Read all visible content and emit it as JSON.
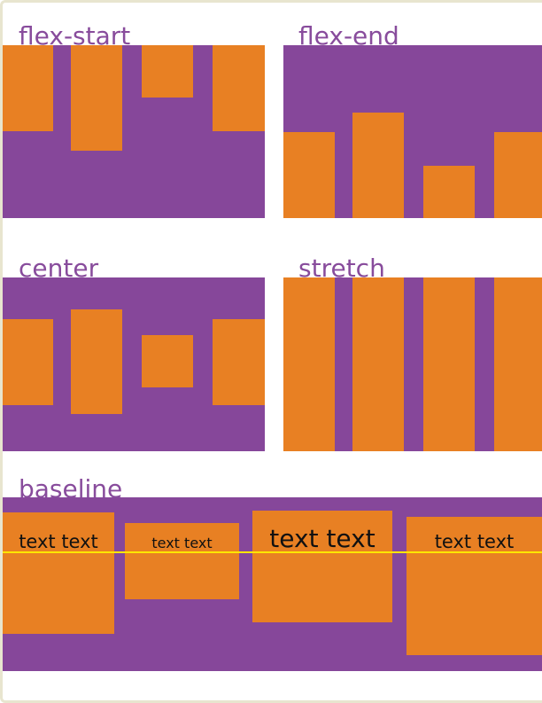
{
  "sections": {
    "flex_start": {
      "label": "flex-start"
    },
    "flex_end": {
      "label": "flex-end"
    },
    "center": {
      "label": "center"
    },
    "stretch": {
      "label": "stretch"
    },
    "baseline": {
      "label": "baseline",
      "items": [
        {
          "text": "text text"
        },
        {
          "text": "text text"
        },
        {
          "text": "text text"
        },
        {
          "text": "text text"
        }
      ]
    }
  },
  "colors": {
    "container": "#86479a",
    "item": "#e88023",
    "label": "#884c9c",
    "baseline_line": "#ffe600",
    "frame_border": "#e8e5cf"
  }
}
